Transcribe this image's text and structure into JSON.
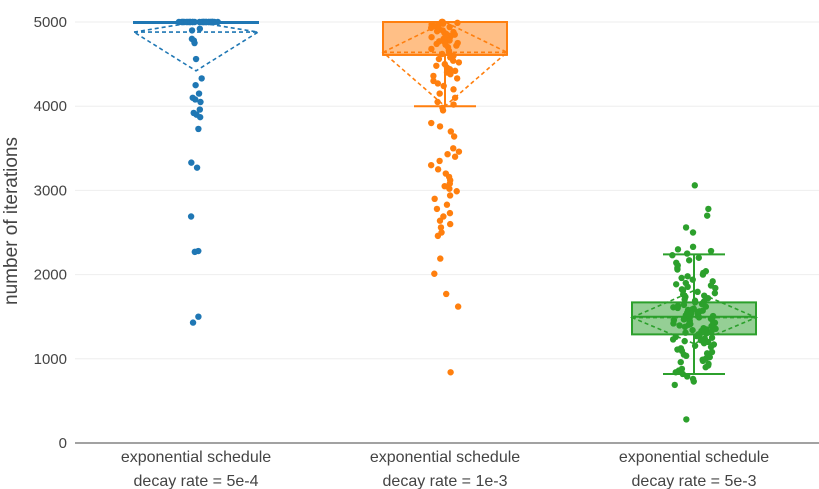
{
  "chart_data": {
    "type": "box",
    "ylabel": "number of iterations",
    "ylim": [
      0,
      5000
    ],
    "yticks": [
      0,
      1000,
      2000,
      3000,
      4000,
      5000
    ],
    "grid": true,
    "categories": [
      [
        "exponential schedule",
        "decay rate = 5e-4"
      ],
      [
        "exponential schedule",
        "decay rate = 1e-3"
      ],
      [
        "exponential schedule",
        "decay rate = 5e-3"
      ]
    ],
    "series": [
      {
        "color": "#1f77b4",
        "box": {
          "q1": 5000,
          "median": 5000,
          "q3": 5000,
          "whisker_low": 5000,
          "whisker_high": 5000
        },
        "mean": 4880,
        "sd_low": 4420,
        "sd_high": 5000,
        "points": [
          5000,
          5000,
          5000,
          5000,
          5000,
          5000,
          5000,
          5000,
          5000,
          5000,
          5000,
          5000,
          5000,
          5000,
          5000,
          5000,
          5000,
          5000,
          5000,
          5000,
          5000,
          5000,
          5000,
          5000,
          5000,
          5000,
          5000,
          5000,
          5000,
          5000,
          4920,
          4900,
          4800,
          4780,
          4750,
          4560,
          4330,
          4250,
          4150,
          4100,
          4080,
          4050,
          3960,
          3920,
          3900,
          3870,
          3730,
          3330,
          3270,
          2690,
          2280,
          2270,
          1500,
          1430
        ]
      },
      {
        "color": "#ff7f0e",
        "box": {
          "q1": 4610,
          "median": 4610,
          "q3": 5000,
          "whisker_low": 4000,
          "whisker_high": 5000
        },
        "mean": 4640,
        "sd_low": 4000,
        "sd_high": 5000,
        "points": [
          5000,
          5000,
          5000,
          4990,
          4980,
          4970,
          4960,
          4950,
          4940,
          4930,
          4920,
          4910,
          4900,
          4890,
          4880,
          4870,
          4860,
          4850,
          4840,
          4830,
          4820,
          4810,
          4800,
          4790,
          4780,
          4770,
          4760,
          4750,
          4740,
          4730,
          4720,
          4700,
          4680,
          4660,
          4640,
          4620,
          4600,
          4580,
          4560,
          4540,
          4520,
          4500,
          4480,
          4460,
          4440,
          4420,
          4400,
          4380,
          4360,
          4330,
          4300,
          4270,
          4240,
          4200,
          4150,
          4100,
          4050,
          4020,
          3980,
          3950,
          3800,
          3760,
          3700,
          3640,
          3500,
          3460,
          3430,
          3400,
          3350,
          3300,
          3250,
          3200,
          3160,
          3120,
          3080,
          3050,
          3020,
          2990,
          2940,
          2900,
          2830,
          2780,
          2730,
          2690,
          2640,
          2600,
          2560,
          2500,
          2460,
          2190,
          2010,
          1770,
          1620,
          840
        ]
      },
      {
        "color": "#2ca02c",
        "box": {
          "q1": 1290,
          "median": 1500,
          "q3": 1670,
          "whisker_low": 820,
          "whisker_high": 2240
        },
        "mean": 1490,
        "sd_low": 1180,
        "sd_high": 1810,
        "points": [
          3060,
          2780,
          2700,
          2560,
          2500,
          2330,
          2300,
          2280,
          2250,
          2230,
          2200,
          2170,
          2140,
          2110,
          2080,
          2060,
          2040,
          2020,
          2000,
          1980,
          1960,
          1940,
          1920,
          1900,
          1885,
          1870,
          1855,
          1840,
          1825,
          1810,
          1795,
          1780,
          1765,
          1750,
          1735,
          1720,
          1705,
          1690,
          1680,
          1670,
          1660,
          1650,
          1640,
          1630,
          1620,
          1612,
          1604,
          1596,
          1588,
          1580,
          1572,
          1564,
          1556,
          1548,
          1540,
          1532,
          1524,
          1516,
          1508,
          1500,
          1492,
          1484,
          1476,
          1468,
          1460,
          1452,
          1444,
          1436,
          1428,
          1420,
          1412,
          1404,
          1396,
          1388,
          1380,
          1372,
          1364,
          1356,
          1348,
          1340,
          1330,
          1320,
          1310,
          1300,
          1290,
          1280,
          1270,
          1260,
          1250,
          1240,
          1230,
          1220,
          1210,
          1200,
          1185,
          1170,
          1155,
          1140,
          1125,
          1110,
          1095,
          1080,
          1065,
          1050,
          1035,
          1020,
          1005,
          990,
          975,
          960,
          940,
          920,
          900,
          880,
          860,
          840,
          820,
          790,
          760,
          730,
          690,
          280
        ]
      }
    ]
  }
}
